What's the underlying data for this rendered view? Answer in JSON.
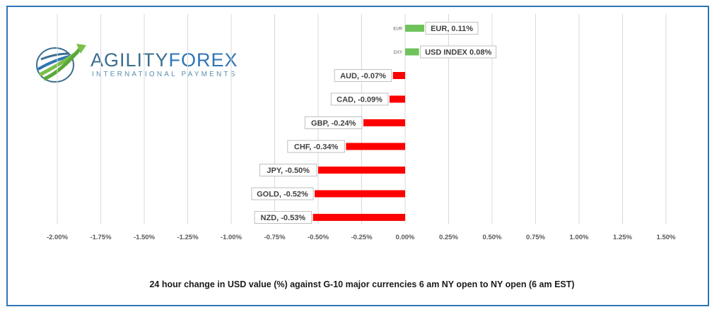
{
  "logo": {
    "name_part1": "AGILITY",
    "name_part2": "FOREX",
    "tagline": "INTERNATIONAL PAYMENTS"
  },
  "caption": "24 hour change in  USD value (%)  against  G-10 major currencies  6 am NY open to NY open  (6 am EST)",
  "colors": {
    "positive": "#6ec45a",
    "negative": "#ff0000",
    "grid": "#d9d9d9",
    "axis_text": "#595959"
  },
  "chart_data": {
    "type": "bar",
    "orientation": "horizontal",
    "xlim": [
      -2.0,
      1.5
    ],
    "x_ticks": [
      -2.0,
      -1.75,
      -1.5,
      -1.25,
      -1.0,
      -0.75,
      -0.5,
      -0.25,
      0.0,
      0.25,
      0.5,
      0.75,
      1.0,
      1.25,
      1.5
    ],
    "x_tick_labels": [
      "-2.00%",
      "-1.75%",
      "-1.50%",
      "-1.25%",
      "-1.00%",
      "-0.75%",
      "-0.50%",
      "-0.25%",
      "0.00%",
      "0.25%",
      "0.50%",
      "0.75%",
      "1.00%",
      "1.25%",
      "1.50%"
    ],
    "grid": true,
    "bars": [
      {
        "category": "EUR",
        "value": 0.11,
        "label": "EUR, 0.11%",
        "tick": "EUR"
      },
      {
        "category": "DXY",
        "value": 0.08,
        "label": "USD INDEX 0.08%",
        "tick": "DXY"
      },
      {
        "category": "AUD",
        "value": -0.07,
        "label": "AUD, -0.07%",
        "tick": ""
      },
      {
        "category": "CAD",
        "value": -0.09,
        "label": "CAD, -0.09%",
        "tick": ""
      },
      {
        "category": "GBP",
        "value": -0.24,
        "label": "GBP, -0.24%",
        "tick": ""
      },
      {
        "category": "CHF",
        "value": -0.34,
        "label": "CHF, -0.34%",
        "tick": ""
      },
      {
        "category": "JPY",
        "value": -0.5,
        "label": "JPY, -0.50%",
        "tick": ""
      },
      {
        "category": "GOLD",
        "value": -0.52,
        "label": "GOLD, -0.52%",
        "tick": ""
      },
      {
        "category": "NZD",
        "value": -0.53,
        "label": "NZD, -0.53%",
        "tick": ""
      }
    ]
  }
}
